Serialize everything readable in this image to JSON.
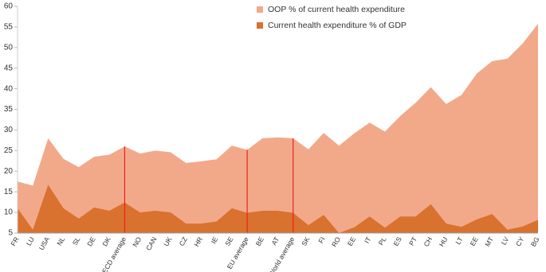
{
  "chart_data": {
    "type": "area",
    "categories": [
      "FR",
      "LU",
      "USA",
      "NL",
      "SL",
      "DE",
      "DK",
      "OECD average",
      "NO",
      "CAN",
      "UK",
      "CZ",
      "HR",
      "IE",
      "SE",
      "EU average",
      "BE",
      "AT",
      "World average",
      "SK",
      "FI",
      "RO",
      "EE",
      "IT",
      "PL",
      "ES",
      "PT",
      "CH",
      "HU",
      "LT",
      "EE",
      "MT",
      "LV",
      "CY",
      "BG"
    ],
    "series": [
      {
        "name": "OOP % of current health expenditure",
        "color": "#f2a98a",
        "values": [
          17.5,
          16.5,
          28,
          23,
          21,
          23.5,
          24,
          26,
          24.3,
          25,
          24.6,
          22,
          22.4,
          22.9,
          26.2,
          25.2,
          28,
          28.2,
          28,
          25.3,
          29.3,
          26.2,
          29.2,
          31.8,
          29.6,
          33.4,
          36.6,
          40.4,
          36.3,
          38.5,
          43.7,
          46.7,
          47.3,
          51,
          55.8
        ]
      },
      {
        "name": "Current health expenditure % of GDP",
        "color": "#d9712f",
        "values": [
          11,
          5.8,
          16.7,
          11,
          8.5,
          11.2,
          10.4,
          12.4,
          10,
          10.4,
          10,
          7.3,
          7.3,
          7.8,
          11,
          9.9,
          10.4,
          10.4,
          9.9,
          6.9,
          9.4,
          5,
          6.4,
          9,
          6.3,
          9,
          9,
          12,
          7.3,
          6.5,
          8.3,
          9.6,
          5.8,
          6.6,
          8.2
        ]
      }
    ],
    "ylim": [
      5,
      60
    ],
    "yticks": [
      5,
      10,
      15,
      20,
      25,
      30,
      35,
      40,
      45,
      50,
      55,
      60
    ],
    "marker_color": "#e8231f"
  }
}
